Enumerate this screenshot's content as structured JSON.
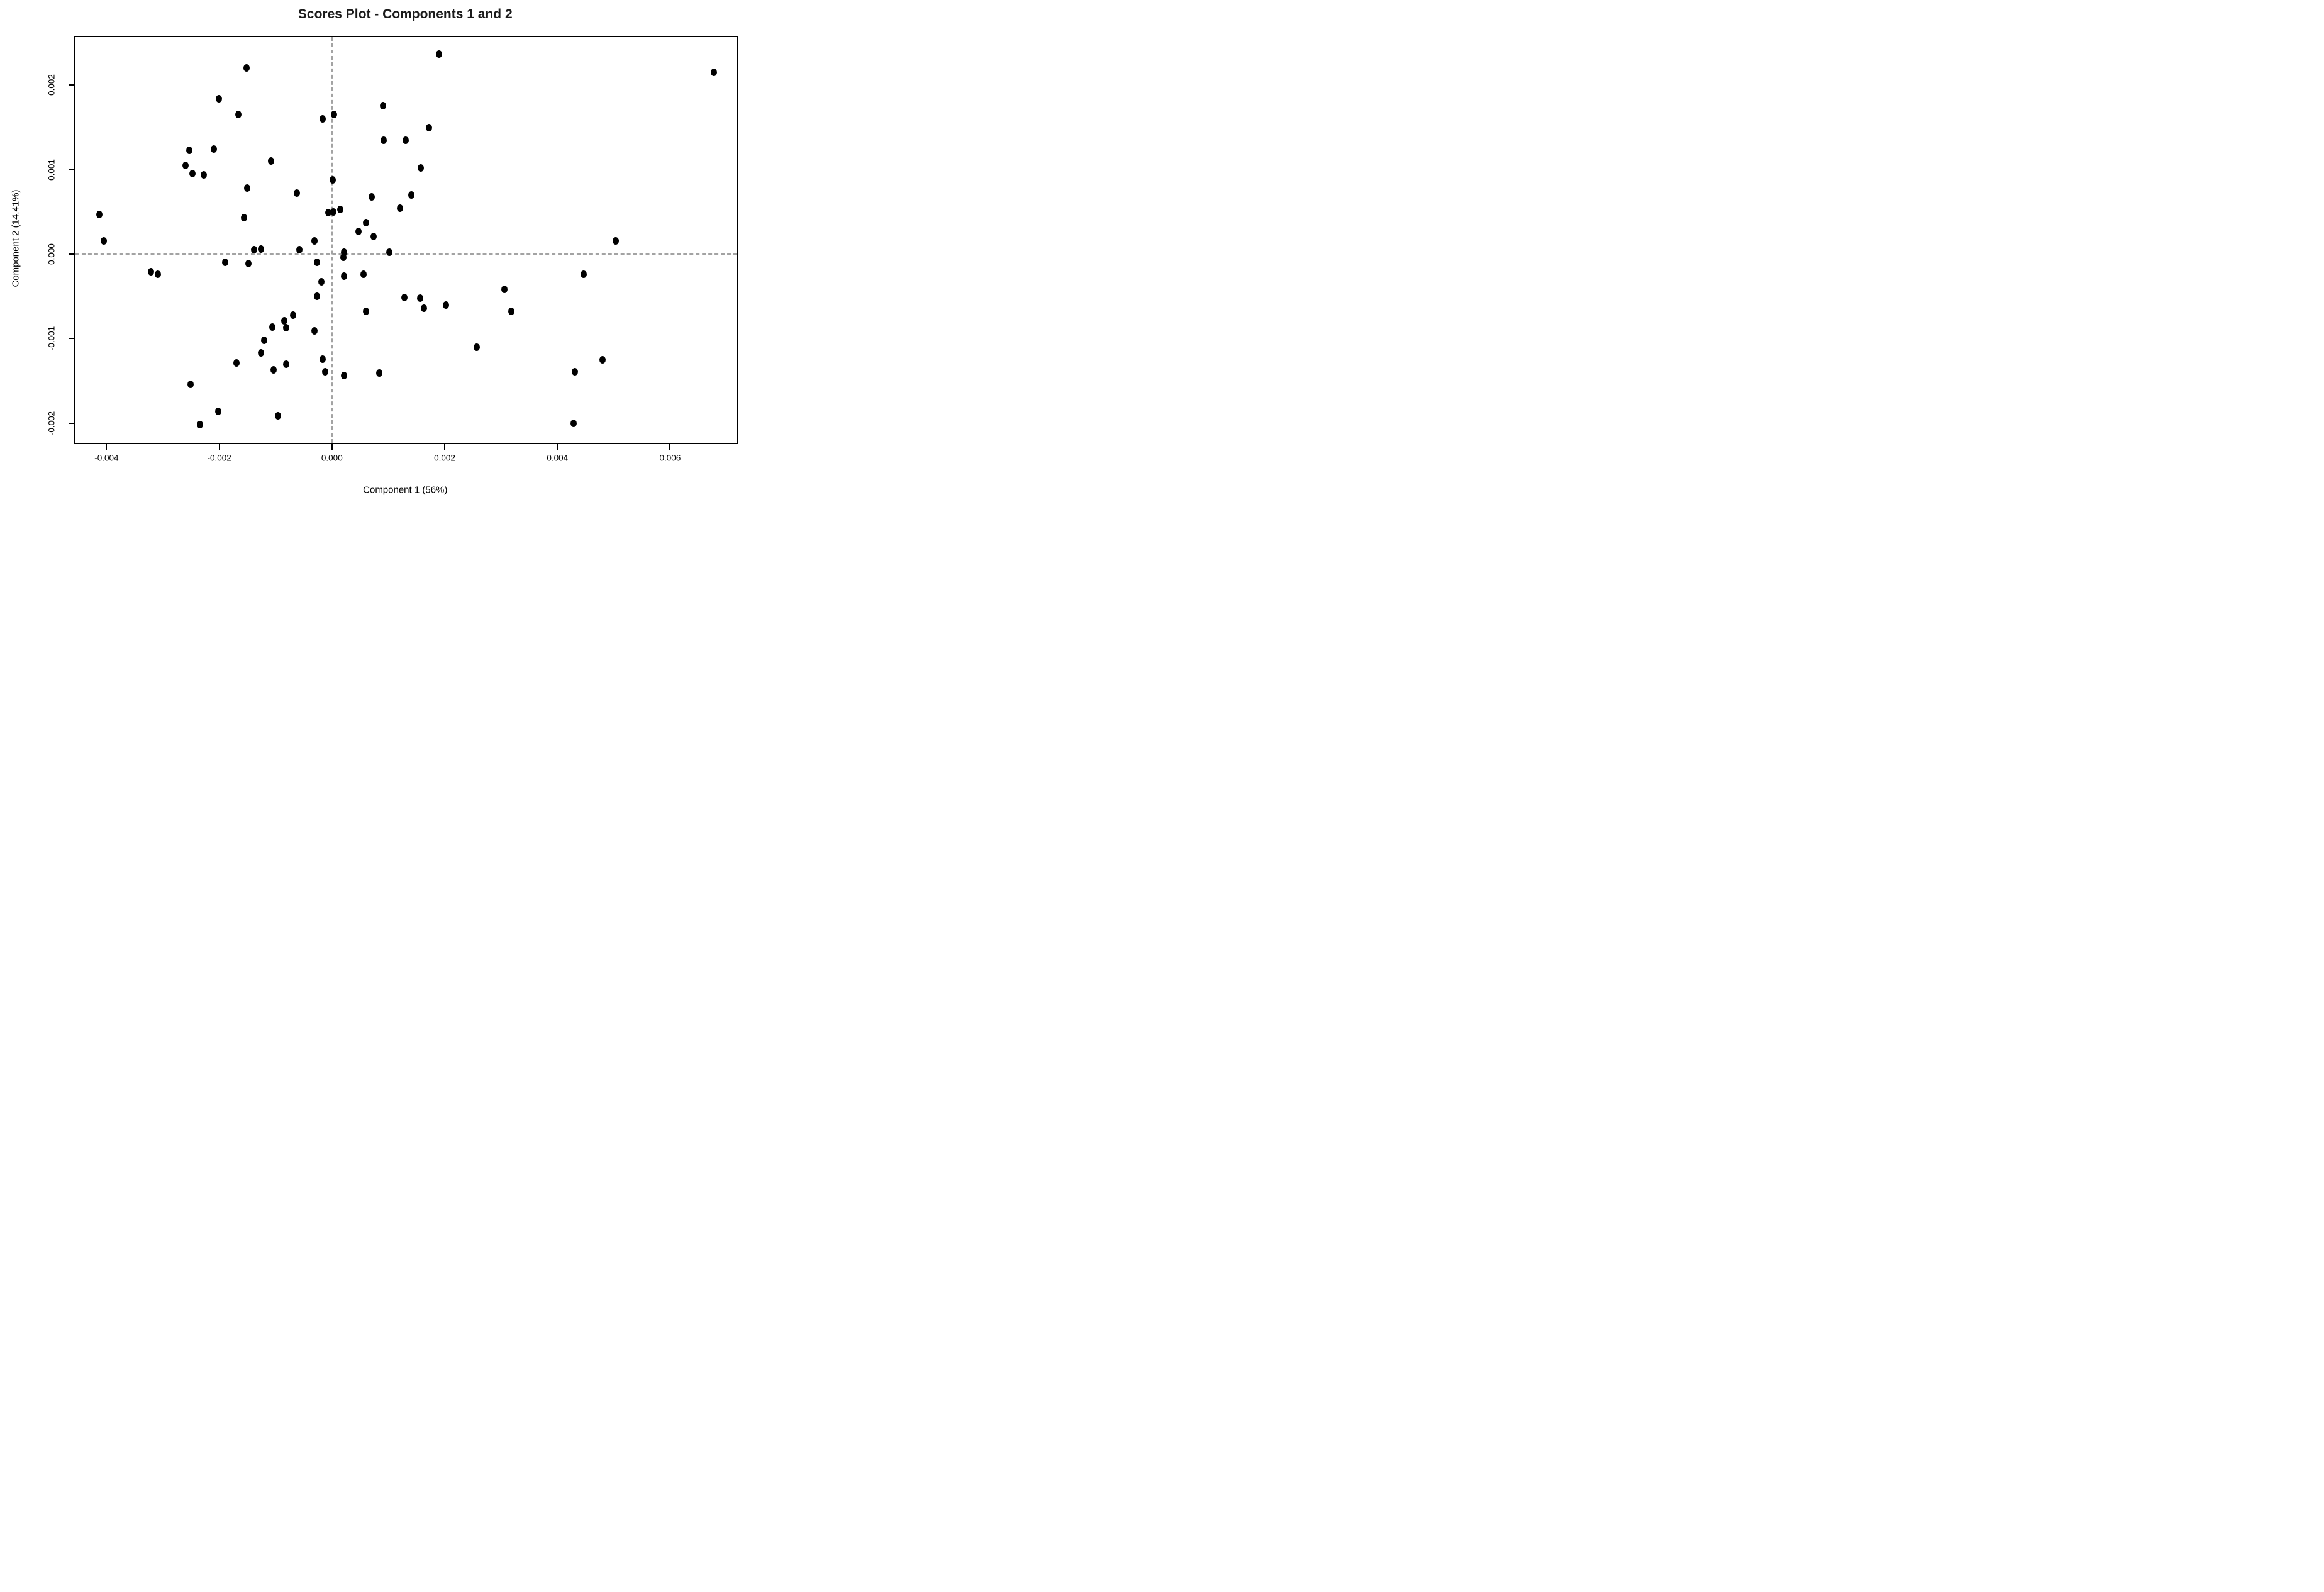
{
  "chart_data": {
    "type": "scatter",
    "title": "Scores Plot - Components 1 and 2",
    "xlabel": "Component 1 (56%)",
    "ylabel": "Component 2 (14.41%)",
    "xlim": [
      -0.00455,
      0.00719
    ],
    "ylim": [
      -0.00223,
      0.00257
    ],
    "xticks": {
      "values": [
        -0.004,
        -0.002,
        0.0,
        0.002,
        0.004,
        0.006
      ],
      "labels": [
        "-0.004",
        "-0.002",
        "0.000",
        "0.002",
        "0.004",
        "0.006"
      ]
    },
    "yticks": {
      "values": [
        -0.002,
        -0.001,
        0.0,
        0.001,
        0.002
      ],
      "labels": [
        "-0.002",
        "-0.001",
        "0.000",
        "0.001",
        "0.002"
      ]
    },
    "reference_lines": {
      "x": 0.0,
      "y": 0.0,
      "style": "dashed",
      "color": "#a3a3a3"
    },
    "grid": false,
    "legend": null,
    "marker": {
      "shape": "ellipse",
      "color": "#000000"
    },
    "n_points": 80,
    "points": [
      [
        -0.00152,
        0.0022
      ],
      [
        -0.00201,
        0.00184
      ],
      [
        -0.00166,
        0.00165
      ],
      [
        -0.00253,
        0.00123
      ],
      [
        -0.0021,
        0.00124
      ],
      [
        -0.0026,
        0.00105
      ],
      [
        -0.00248,
        0.00095
      ],
      [
        -0.00228,
        0.00094
      ],
      [
        -0.00108,
        0.0011
      ],
      [
        -0.00151,
        0.00078
      ],
      [
        -0.00156,
        0.00043
      ],
      [
        -0.00413,
        0.00047
      ],
      [
        -0.00405,
        0.00016
      ],
      [
        -0.00138,
        5e-05
      ],
      [
        -0.00126,
        6e-05
      ],
      [
        -0.00062,
        0.00072
      ],
      [
        -0.00058,
        5e-05
      ],
      [
        -0.00031,
        0.00016
      ],
      [
        -0.00189,
        -0.0001
      ],
      [
        -0.00148,
        -0.00011
      ],
      [
        -0.00321,
        -0.00021
      ],
      [
        -0.00309,
        -0.00024
      ],
      [
        1e-05,
        0.00088
      ],
      [
        -7e-05,
        0.00049
      ],
      [
        2e-05,
        0.0005
      ],
      [
        0.00015,
        0.00053
      ],
      [
        0.00021,
        2e-05
      ],
      [
        0.0002,
        -4e-05
      ],
      [
        -0.00027,
        -0.0001
      ],
      [
        -0.00019,
        -0.00033
      ],
      [
        -0.00027,
        -0.0005
      ],
      [
        0.00056,
        -0.00024
      ],
      [
        0.00021,
        -0.00026
      ],
      [
        0.0019,
        0.00237
      ],
      [
        0.00091,
        0.00176
      ],
      [
        3e-05,
        0.00165
      ],
      [
        -0.00017,
        0.0016
      ],
      [
        0.00172,
        0.0015
      ],
      [
        0.00092,
        0.00135
      ],
      [
        0.00131,
        0.00135
      ],
      [
        0.00158,
        0.00102
      ],
      [
        0.00071,
        0.00068
      ],
      [
        0.00141,
        0.0007
      ],
      [
        0.00121,
        0.00054
      ],
      [
        0.00061,
        0.00037
      ],
      [
        0.00047,
        0.00027
      ],
      [
        0.00074,
        0.00021
      ],
      [
        0.00102,
        2e-05
      ],
      [
        0.00678,
        0.00215
      ],
      [
        0.00504,
        0.00016
      ],
      [
        0.00129,
        -0.00051
      ],
      [
        0.00157,
        -0.00052
      ],
      [
        0.00163,
        -0.00064
      ],
      [
        0.00202,
        -0.0006
      ],
      [
        0.00306,
        -0.00042
      ],
      [
        0.00318,
        -0.00068
      ],
      [
        0.0006,
        -0.00068
      ],
      [
        0.00257,
        -0.0011
      ],
      [
        0.00447,
        -0.00024
      ],
      [
        0.0048,
        -0.00125
      ],
      [
        0.00431,
        -0.00139
      ],
      [
        0.00429,
        -0.002
      ],
      [
        -0.00069,
        -0.00072
      ],
      [
        -0.00085,
        -0.00079
      ],
      [
        -0.00106,
        -0.00086
      ],
      [
        -0.00081,
        -0.00087
      ],
      [
        -0.0012,
        -0.00102
      ],
      [
        -0.00126,
        -0.00117
      ],
      [
        -0.00169,
        -0.00129
      ],
      [
        -0.00081,
        -0.0013
      ],
      [
        -0.00104,
        -0.00137
      ],
      [
        -0.00251,
        -0.00154
      ],
      [
        -0.00202,
        -0.00186
      ],
      [
        -0.00096,
        -0.00191
      ],
      [
        -0.00234,
        -0.00202
      ],
      [
        -0.00031,
        -0.00091
      ],
      [
        -0.00016,
        -0.00124
      ],
      [
        -0.00012,
        -0.00139
      ],
      [
        0.00021,
        -0.00144
      ],
      [
        0.00084,
        -0.00141
      ]
    ]
  }
}
